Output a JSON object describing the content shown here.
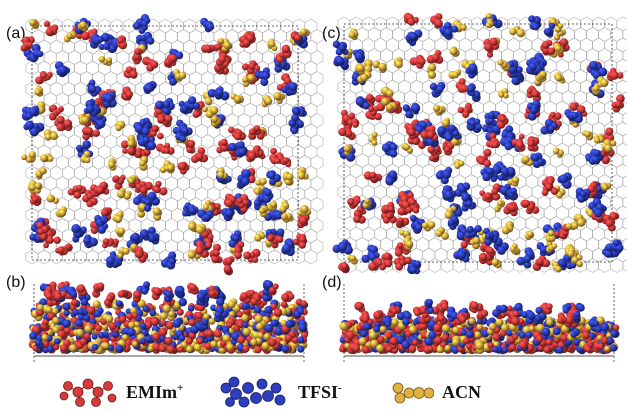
{
  "panels": [
    {
      "key": "a",
      "label": "(a)",
      "view": "top"
    },
    {
      "key": "c",
      "label": "(c)",
      "view": "top"
    },
    {
      "key": "b",
      "label": "(b)",
      "view": "side"
    },
    {
      "key": "d",
      "label": "(d)",
      "view": "side"
    }
  ],
  "legend": {
    "emim": {
      "name": "EMIm",
      "charge": "+",
      "color": "#d83a3a"
    },
    "tfsi": {
      "name": "TFSI",
      "charge": "-",
      "color": "#2d3ec0"
    },
    "acn": {
      "name": "ACN",
      "charge": "",
      "color": "#e0b040"
    }
  },
  "colors": {
    "emim": "#d83a3a",
    "tfsi": "#2d3ec0",
    "acn": "#e0b040",
    "graphene": "#9a9a9a"
  }
}
